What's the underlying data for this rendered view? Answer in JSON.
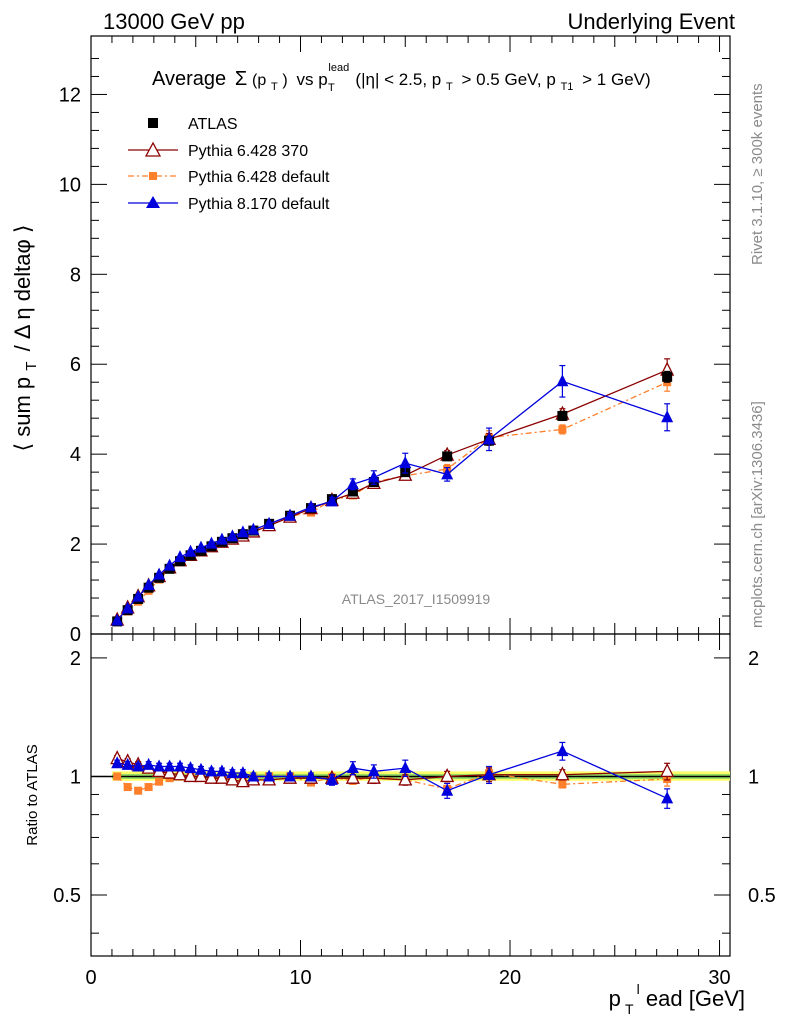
{
  "header": {
    "left": "13000 GeV pp",
    "right": "Underlying Event"
  },
  "plot_title": {
    "prefix": "Average",
    "sigma": "Σ",
    "pt_sub": "(p",
    "pt_sub_T": "T",
    "close": ")",
    "vs": "vs p",
    "lead_sup": "lead",
    "lead_sub": "T",
    "cuts_a": "(|η| < 2.5, p",
    "cuts_T": "T",
    "cuts_b": "> 0.5 GeV, p",
    "cuts_T1": "T1",
    "cuts_c": "> 1 GeV)"
  },
  "side_labels": {
    "rivet": "Rivet 3.1.10, ≥ 300k events",
    "mcplots": "mcplots.cern.ch [arXiv:1306.3436]"
  },
  "analysis_tag": "ATLAS_2017_I1509919",
  "ratio_ylabel": "Ratio to ATLAS",
  "colors": {
    "atlas": "#000000",
    "py6_370": "#8b0000",
    "py6_default": "#ff7f2a",
    "py8_default": "#0000dd",
    "band_outer": "#ffff66",
    "band_inner": "#99dd66"
  },
  "chart_data": [
    {
      "type": "scatter",
      "ylabel": "⟨ sum p_T / Δη deltaφ ⟩",
      "ylabel_parts": {
        "a": "⟨ sum p",
        "T": "T",
        "b": "/ Δ η deltaφ ⟩"
      },
      "xlim": [
        0,
        30.5
      ],
      "ylim": [
        0,
        13.3
      ],
      "yticks": [
        0,
        2,
        4,
        6,
        8,
        10,
        12
      ],
      "ytick_labels": [
        "0",
        "2",
        "4",
        "6",
        "8",
        "10",
        "12"
      ],
      "legend": [
        "ATLAS",
        "Pythia 6.428 370",
        "Pythia 6.428 default",
        "Pythia 8.170 default"
      ],
      "x": [
        1.25,
        1.75,
        2.25,
        2.75,
        3.25,
        3.75,
        4.25,
        4.75,
        5.25,
        5.75,
        6.25,
        6.75,
        7.25,
        7.75,
        8.5,
        9.5,
        10.5,
        11.5,
        12.5,
        13.5,
        15,
        17,
        19,
        22.5,
        27.5
      ],
      "series": [
        {
          "name": "ATLAS",
          "values": [
            0.28,
            0.53,
            0.78,
            1.03,
            1.25,
            1.45,
            1.62,
            1.75,
            1.85,
            1.95,
            2.05,
            2.13,
            2.22,
            2.3,
            2.45,
            2.63,
            2.8,
            3.0,
            3.17,
            3.38,
            3.6,
            3.95,
            4.3,
            4.85,
            5.72
          ],
          "err": [
            0.02,
            0.02,
            0.03,
            0.03,
            0.03,
            0.03,
            0.03,
            0.03,
            0.04,
            0.04,
            0.04,
            0.04,
            0.04,
            0.04,
            0.05,
            0.05,
            0.05,
            0.06,
            0.06,
            0.07,
            0.07,
            0.08,
            0.09,
            0.1,
            0.12
          ]
        },
        {
          "name": "Pythia 6.428 370",
          "values": [
            0.31,
            0.58,
            0.83,
            1.07,
            1.28,
            1.47,
            1.63,
            1.75,
            1.85,
            1.94,
            2.04,
            2.11,
            2.18,
            2.27,
            2.41,
            2.6,
            2.79,
            2.97,
            3.13,
            3.35,
            3.53,
            3.98,
            4.33,
            4.89,
            5.87
          ],
          "err": [
            0.01,
            0.01,
            0.01,
            0.02,
            0.02,
            0.02,
            0.02,
            0.02,
            0.03,
            0.03,
            0.03,
            0.03,
            0.04,
            0.04,
            0.04,
            0.05,
            0.05,
            0.06,
            0.07,
            0.08,
            0.09,
            0.1,
            0.13,
            0.12,
            0.25
          ]
        },
        {
          "name": "Pythia 6.428 default",
          "values": [
            0.28,
            0.5,
            0.72,
            0.96,
            1.21,
            1.44,
            1.62,
            1.75,
            1.86,
            1.95,
            2.05,
            2.12,
            2.2,
            2.3,
            2.45,
            2.62,
            2.7,
            2.98,
            3.08,
            3.38,
            3.52,
            3.67,
            4.37,
            4.55,
            5.6
          ],
          "err": [
            0.01,
            0.01,
            0.01,
            0.02,
            0.02,
            0.02,
            0.02,
            0.02,
            0.03,
            0.03,
            0.03,
            0.03,
            0.04,
            0.04,
            0.04,
            0.05,
            0.05,
            0.06,
            0.07,
            0.08,
            0.09,
            0.1,
            0.15,
            0.1,
            0.2
          ]
        },
        {
          "name": "Pythia 8.170 default",
          "values": [
            0.3,
            0.57,
            0.83,
            1.09,
            1.32,
            1.52,
            1.71,
            1.83,
            1.92,
            2.01,
            2.1,
            2.17,
            2.26,
            2.32,
            2.45,
            2.63,
            2.82,
            2.95,
            3.33,
            3.48,
            3.8,
            3.55,
            4.33,
            5.62,
            4.82
          ],
          "err": [
            0.02,
            0.02,
            0.03,
            0.03,
            0.03,
            0.03,
            0.04,
            0.04,
            0.04,
            0.04,
            0.05,
            0.05,
            0.05,
            0.06,
            0.06,
            0.07,
            0.07,
            0.09,
            0.12,
            0.15,
            0.22,
            0.15,
            0.25,
            0.35,
            0.3
          ]
        }
      ]
    },
    {
      "type": "scatter",
      "ylabel": "Ratio to ATLAS",
      "xlabel": "p_T^lead [GeV]",
      "xlabel_parts": {
        "p": "p",
        "T": "T",
        "sup": "l",
        "rest": "ead [GeV]"
      },
      "xlim": [
        0,
        30.5
      ],
      "xticks": [
        0,
        10,
        20,
        30
      ],
      "xtick_labels": [
        "0",
        "10",
        "20",
        "30"
      ],
      "ylim": [
        0.35,
        2.3
      ],
      "yticks": [
        0.5,
        1,
        2
      ],
      "ytick_labels": [
        "0.5",
        "1",
        "2"
      ],
      "log_y": true,
      "x": [
        1.25,
        1.75,
        2.25,
        2.75,
        3.25,
        3.75,
        4.25,
        4.75,
        5.25,
        5.75,
        6.25,
        6.75,
        7.25,
        7.75,
        8.5,
        9.5,
        10.5,
        11.5,
        12.5,
        13.5,
        15,
        17,
        19,
        22.5,
        27.5
      ],
      "band": {
        "outer": [
          0.975,
          1.03
        ],
        "inner": [
          0.985,
          1.015
        ]
      },
      "series": [
        {
          "name": "Pythia 6.428 370",
          "values": [
            1.11,
            1.09,
            1.07,
            1.05,
            1.03,
            1.02,
            1.01,
            1.0,
            1.0,
            0.99,
            0.99,
            0.98,
            0.97,
            0.98,
            0.98,
            0.99,
            0.99,
            0.99,
            0.99,
            0.99,
            0.98,
            1.0,
            1.01,
            1.01,
            1.03
          ],
          "err": [
            0.02,
            0.02,
            0.02,
            0.02,
            0.02,
            0.02,
            0.02,
            0.02,
            0.02,
            0.02,
            0.02,
            0.02,
            0.02,
            0.02,
            0.02,
            0.02,
            0.02,
            0.02,
            0.02,
            0.03,
            0.03,
            0.03,
            0.04,
            0.03,
            0.05
          ]
        },
        {
          "name": "Pythia 6.428 default",
          "values": [
            1.0,
            0.94,
            0.92,
            0.94,
            0.97,
            0.99,
            1.0,
            1.0,
            1.0,
            1.0,
            1.0,
            1.0,
            0.99,
            0.99,
            1.0,
            1.0,
            0.965,
            0.995,
            0.975,
            1.0,
            0.98,
            0.93,
            1.02,
            0.955,
            0.985
          ],
          "err": [
            0.01,
            0.01,
            0.01,
            0.01,
            0.01,
            0.01,
            0.01,
            0.01,
            0.01,
            0.01,
            0.01,
            0.01,
            0.01,
            0.01,
            0.01,
            0.01,
            0.015,
            0.015,
            0.02,
            0.02,
            0.025,
            0.03,
            0.035,
            0.02,
            0.04
          ]
        },
        {
          "name": "Pythia 8.170 default",
          "values": [
            1.08,
            1.07,
            1.06,
            1.07,
            1.06,
            1.06,
            1.06,
            1.05,
            1.04,
            1.03,
            1.03,
            1.02,
            1.02,
            1.0,
            1.0,
            1.0,
            1.0,
            0.98,
            1.05,
            1.03,
            1.05,
            0.92,
            1.01,
            1.16,
            0.88
          ],
          "err": [
            0.02,
            0.02,
            0.02,
            0.02,
            0.02,
            0.02,
            0.02,
            0.02,
            0.02,
            0.02,
            0.02,
            0.02,
            0.02,
            0.02,
            0.02,
            0.02,
            0.02,
            0.03,
            0.04,
            0.04,
            0.05,
            0.04,
            0.05,
            0.06,
            0.05
          ]
        }
      ]
    }
  ]
}
